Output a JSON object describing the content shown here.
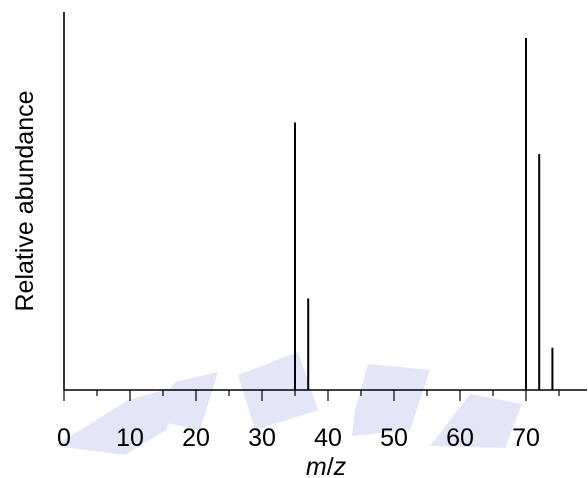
{
  "colors": {
    "bars": "#000000",
    "axes": "#000000",
    "watermark": "#e3e6f6"
  },
  "chart_data": {
    "type": "bar",
    "title": "",
    "xlabel_italic_m": "m",
    "xlabel_slash": "/",
    "xlabel_italic_z": "z",
    "ylabel": "Relative abundance",
    "xlim": [
      0,
      80
    ],
    "ylim": [
      0,
      100
    ],
    "xticks": [
      0,
      10,
      20,
      30,
      40,
      50,
      60,
      70
    ],
    "xticks_minor": [
      5,
      15,
      25,
      35,
      45,
      55,
      65,
      75
    ],
    "grid": false,
    "legend": "none",
    "points": [
      {
        "x": 35,
        "y": 76
      },
      {
        "x": 37,
        "y": 26
      },
      {
        "x": 70,
        "y": 100
      },
      {
        "x": 72,
        "y": 67
      },
      {
        "x": 74,
        "y": 12
      }
    ]
  }
}
